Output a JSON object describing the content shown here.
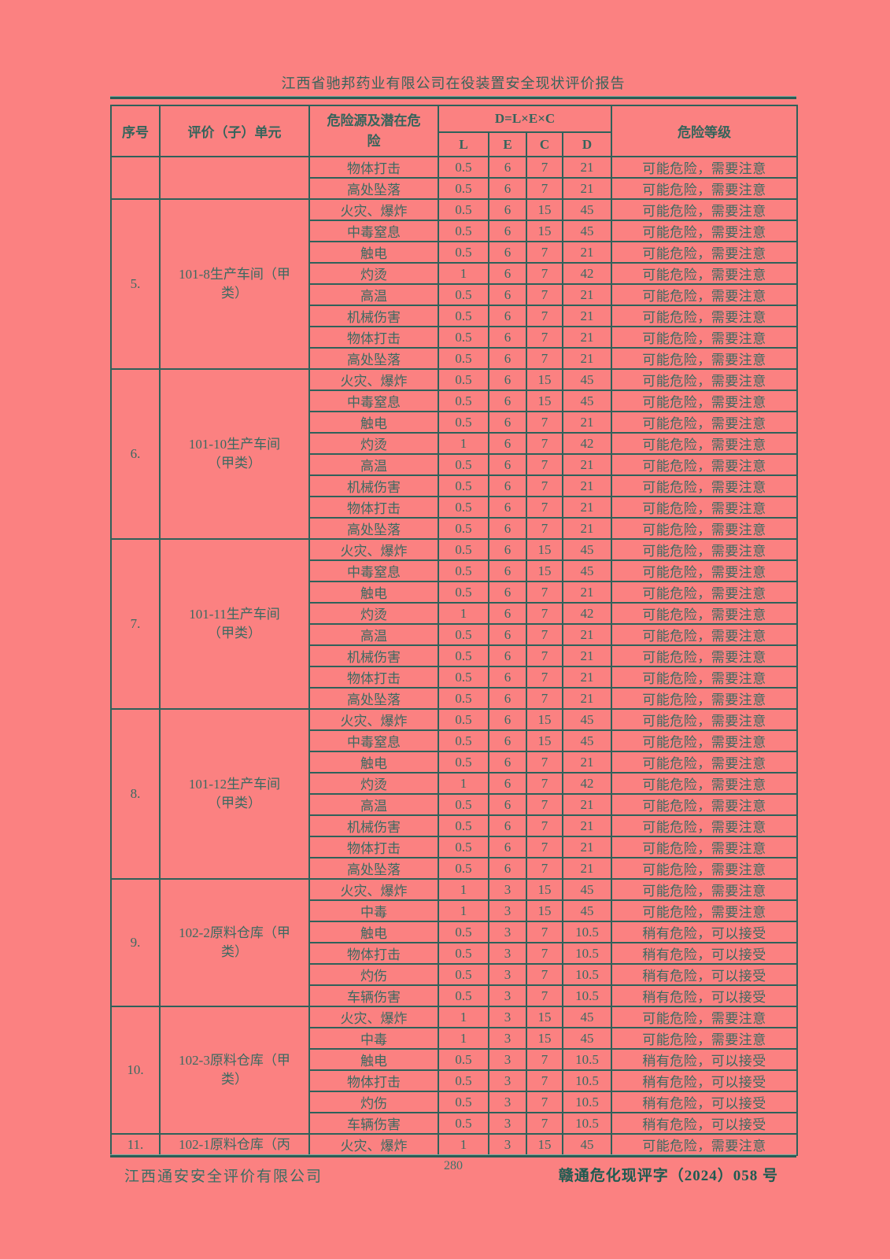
{
  "page": {
    "header_title": "江西省驰邦药业有限公司在役装置安全现状评价报告",
    "footer_company": "江西通安安全评价有限公司",
    "page_number": "280",
    "footer_doc_number": "赣通危化现评字（2024）058 号"
  },
  "colors": {
    "page_background": "#fb8181",
    "ink_teal": "#3b6a61",
    "border_teal": "#2f615a",
    "doc_number_teal": "#1e5b51"
  },
  "table": {
    "headers": {
      "seq": "序号",
      "unit": "评价（子）单元",
      "hazard": "危险源及潜在危险",
      "formula": "D=L×E×C",
      "l": "L",
      "e": "E",
      "c": "C",
      "d": "D",
      "level": "危险等级"
    },
    "sections": [
      {
        "seq": "",
        "unit": "",
        "rows": [
          {
            "hazard": "物体打击",
            "l": "0.5",
            "e": "6",
            "c": "7",
            "d": "21",
            "level": "可能危险，需要注意"
          },
          {
            "hazard": "高处坠落",
            "l": "0.5",
            "e": "6",
            "c": "7",
            "d": "21",
            "level": "可能危险，需要注意"
          }
        ]
      },
      {
        "seq": "5.",
        "unit": "101-8生产车间（甲类）",
        "rows": [
          {
            "hazard": "火灾、爆炸",
            "l": "0.5",
            "e": "6",
            "c": "15",
            "d": "45",
            "level": "可能危险，需要注意"
          },
          {
            "hazard": "中毒窒息",
            "l": "0.5",
            "e": "6",
            "c": "15",
            "d": "45",
            "level": "可能危险，需要注意"
          },
          {
            "hazard": "触电",
            "l": "0.5",
            "e": "6",
            "c": "7",
            "d": "21",
            "level": "可能危险，需要注意"
          },
          {
            "hazard": "灼烫",
            "l": "1",
            "e": "6",
            "c": "7",
            "d": "42",
            "level": "可能危险，需要注意"
          },
          {
            "hazard": "高温",
            "l": "0.5",
            "e": "6",
            "c": "7",
            "d": "21",
            "level": "可能危险，需要注意"
          },
          {
            "hazard": "机械伤害",
            "l": "0.5",
            "e": "6",
            "c": "7",
            "d": "21",
            "level": "可能危险，需要注意"
          },
          {
            "hazard": "物体打击",
            "l": "0.5",
            "e": "6",
            "c": "7",
            "d": "21",
            "level": "可能危险，需要注意"
          },
          {
            "hazard": "高处坠落",
            "l": "0.5",
            "e": "6",
            "c": "7",
            "d": "21",
            "level": "可能危险，需要注意"
          }
        ]
      },
      {
        "seq": "6.",
        "unit": "101-10生产车间（甲类）",
        "rows": [
          {
            "hazard": "火灾、爆炸",
            "l": "0.5",
            "e": "6",
            "c": "15",
            "d": "45",
            "level": "可能危险，需要注意"
          },
          {
            "hazard": "中毒窒息",
            "l": "0.5",
            "e": "6",
            "c": "15",
            "d": "45",
            "level": "可能危险，需要注意"
          },
          {
            "hazard": "触电",
            "l": "0.5",
            "e": "6",
            "c": "7",
            "d": "21",
            "level": "可能危险，需要注意"
          },
          {
            "hazard": "灼烫",
            "l": "1",
            "e": "6",
            "c": "7",
            "d": "42",
            "level": "可能危险，需要注意"
          },
          {
            "hazard": "高温",
            "l": "0.5",
            "e": "6",
            "c": "7",
            "d": "21",
            "level": "可能危险，需要注意"
          },
          {
            "hazard": "机械伤害",
            "l": "0.5",
            "e": "6",
            "c": "7",
            "d": "21",
            "level": "可能危险，需要注意"
          },
          {
            "hazard": "物体打击",
            "l": "0.5",
            "e": "6",
            "c": "7",
            "d": "21",
            "level": "可能危险，需要注意"
          },
          {
            "hazard": "高处坠落",
            "l": "0.5",
            "e": "6",
            "c": "7",
            "d": "21",
            "level": "可能危险，需要注意"
          }
        ]
      },
      {
        "seq": "7.",
        "unit": "101-11生产车间（甲类）",
        "rows": [
          {
            "hazard": "火灾、爆炸",
            "l": "0.5",
            "e": "6",
            "c": "15",
            "d": "45",
            "level": "可能危险，需要注意"
          },
          {
            "hazard": "中毒窒息",
            "l": "0.5",
            "e": "6",
            "c": "15",
            "d": "45",
            "level": "可能危险，需要注意"
          },
          {
            "hazard": "触电",
            "l": "0.5",
            "e": "6",
            "c": "7",
            "d": "21",
            "level": "可能危险，需要注意"
          },
          {
            "hazard": "灼烫",
            "l": "1",
            "e": "6",
            "c": "7",
            "d": "42",
            "level": "可能危险，需要注意"
          },
          {
            "hazard": "高温",
            "l": "0.5",
            "e": "6",
            "c": "7",
            "d": "21",
            "level": "可能危险，需要注意"
          },
          {
            "hazard": "机械伤害",
            "l": "0.5",
            "e": "6",
            "c": "7",
            "d": "21",
            "level": "可能危险，需要注意"
          },
          {
            "hazard": "物体打击",
            "l": "0.5",
            "e": "6",
            "c": "7",
            "d": "21",
            "level": "可能危险，需要注意"
          },
          {
            "hazard": "高处坠落",
            "l": "0.5",
            "e": "6",
            "c": "7",
            "d": "21",
            "level": "可能危险，需要注意"
          }
        ]
      },
      {
        "seq": "8.",
        "unit": "101-12生产车间（甲类）",
        "rows": [
          {
            "hazard": "火灾、爆炸",
            "l": "0.5",
            "e": "6",
            "c": "15",
            "d": "45",
            "level": "可能危险，需要注意"
          },
          {
            "hazard": "中毒窒息",
            "l": "0.5",
            "e": "6",
            "c": "15",
            "d": "45",
            "level": "可能危险，需要注意"
          },
          {
            "hazard": "触电",
            "l": "0.5",
            "e": "6",
            "c": "7",
            "d": "21",
            "level": "可能危险，需要注意"
          },
          {
            "hazard": "灼烫",
            "l": "1",
            "e": "6",
            "c": "7",
            "d": "42",
            "level": "可能危险，需要注意"
          },
          {
            "hazard": "高温",
            "l": "0.5",
            "e": "6",
            "c": "7",
            "d": "21",
            "level": "可能危险，需要注意"
          },
          {
            "hazard": "机械伤害",
            "l": "0.5",
            "e": "6",
            "c": "7",
            "d": "21",
            "level": "可能危险，需要注意"
          },
          {
            "hazard": "物体打击",
            "l": "0.5",
            "e": "6",
            "c": "7",
            "d": "21",
            "level": "可能危险，需要注意"
          },
          {
            "hazard": "高处坠落",
            "l": "0.5",
            "e": "6",
            "c": "7",
            "d": "21",
            "level": "可能危险，需要注意"
          }
        ]
      },
      {
        "seq": "9.",
        "unit": "102-2原料仓库（甲类）",
        "rows": [
          {
            "hazard": "火灾、爆炸",
            "l": "1",
            "e": "3",
            "c": "15",
            "d": "45",
            "level": "可能危险，需要注意"
          },
          {
            "hazard": "中毒",
            "l": "1",
            "e": "3",
            "c": "15",
            "d": "45",
            "level": "可能危险，需要注意"
          },
          {
            "hazard": "触电",
            "l": "0.5",
            "e": "3",
            "c": "7",
            "d": "10.5",
            "level": "稍有危险，可以接受"
          },
          {
            "hazard": "物体打击",
            "l": "0.5",
            "e": "3",
            "c": "7",
            "d": "10.5",
            "level": "稍有危险，可以接受"
          },
          {
            "hazard": "灼伤",
            "l": "0.5",
            "e": "3",
            "c": "7",
            "d": "10.5",
            "level": "稍有危险，可以接受"
          },
          {
            "hazard": "车辆伤害",
            "l": "0.5",
            "e": "3",
            "c": "7",
            "d": "10.5",
            "level": "稍有危险，可以接受"
          }
        ]
      },
      {
        "seq": "10.",
        "unit": "102-3原料仓库（甲类）",
        "rows": [
          {
            "hazard": "火灾、爆炸",
            "l": "1",
            "e": "3",
            "c": "15",
            "d": "45",
            "level": "可能危险，需要注意"
          },
          {
            "hazard": "中毒",
            "l": "1",
            "e": "3",
            "c": "15",
            "d": "45",
            "level": "可能危险，需要注意"
          },
          {
            "hazard": "触电",
            "l": "0.5",
            "e": "3",
            "c": "7",
            "d": "10.5",
            "level": "稍有危险，可以接受"
          },
          {
            "hazard": "物体打击",
            "l": "0.5",
            "e": "3",
            "c": "7",
            "d": "10.5",
            "level": "稍有危险，可以接受"
          },
          {
            "hazard": "灼伤",
            "l": "0.5",
            "e": "3",
            "c": "7",
            "d": "10.5",
            "level": "稍有危险，可以接受"
          },
          {
            "hazard": "车辆伤害",
            "l": "0.5",
            "e": "3",
            "c": "7",
            "d": "10.5",
            "level": "稍有危险，可以接受"
          }
        ]
      },
      {
        "seq": "11.",
        "unit": "102-1原料仓库（丙",
        "rows": [
          {
            "hazard": "火灾、爆炸",
            "l": "1",
            "e": "3",
            "c": "15",
            "d": "45",
            "level": "可能危险，需要注意"
          }
        ]
      }
    ]
  }
}
